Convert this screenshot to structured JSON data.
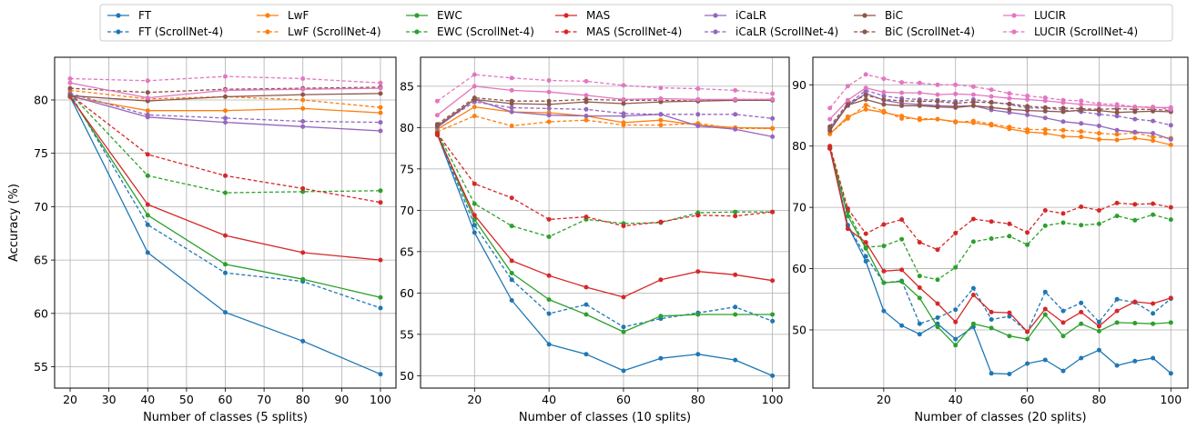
{
  "legend": [
    {
      "label": "FT",
      "color": "#1f77b4",
      "dashed": false
    },
    {
      "label": "FT (ScrollNet-4)",
      "color": "#1f77b4",
      "dashed": true
    },
    {
      "label": "LwF",
      "color": "#ff7f0e",
      "dashed": false
    },
    {
      "label": "LwF (ScrollNet-4)",
      "color": "#ff7f0e",
      "dashed": true
    },
    {
      "label": "EWC",
      "color": "#2ca02c",
      "dashed": false
    },
    {
      "label": "EWC (ScrollNet-4)",
      "color": "#2ca02c",
      "dashed": true
    },
    {
      "label": "MAS",
      "color": "#d62728",
      "dashed": false
    },
    {
      "label": "MAS (ScrollNet-4)",
      "color": "#d62728",
      "dashed": true
    },
    {
      "label": "iCaLR",
      "color": "#9467bd",
      "dashed": false
    },
    {
      "label": "iCaLR (ScrollNet-4)",
      "color": "#9467bd",
      "dashed": true
    },
    {
      "label": "BiC",
      "color": "#8c564b",
      "dashed": false
    },
    {
      "label": "BiC (ScrollNet-4)",
      "color": "#8c564b",
      "dashed": true
    },
    {
      "label": "LUCIR",
      "color": "#e377c2",
      "dashed": false
    },
    {
      "label": "LUCIR (ScrollNet-4)",
      "color": "#e377c2",
      "dashed": true
    }
  ],
  "chart_data": [
    {
      "type": "line",
      "xlabel": "Number of classes (5 splits)",
      "ylabel": "Accuracy (%)",
      "xlim": [
        16,
        104
      ],
      "ylim": [
        53,
        84
      ],
      "xticks": [
        20,
        30,
        40,
        50,
        60,
        70,
        80,
        90,
        100
      ],
      "yticks": [
        55,
        60,
        65,
        70,
        75,
        80
      ],
      "grid": true,
      "x": [
        20,
        40,
        60,
        80,
        100
      ],
      "series": [
        {
          "name": "FT",
          "values": [
            80.3,
            65.7,
            60.1,
            57.4,
            54.3
          ]
        },
        {
          "name": "FT (ScrollNet-4)",
          "values": [
            80.6,
            68.3,
            63.8,
            63.0,
            60.5
          ]
        },
        {
          "name": "LwF",
          "values": [
            80.3,
            79.0,
            79.0,
            79.2,
            78.8
          ]
        },
        {
          "name": "LwF (ScrollNet-4)",
          "values": [
            80.9,
            80.1,
            80.3,
            80.0,
            79.3
          ]
        },
        {
          "name": "EWC",
          "values": [
            80.4,
            69.2,
            64.6,
            63.2,
            61.5
          ]
        },
        {
          "name": "EWC (ScrollNet-4)",
          "values": [
            80.6,
            72.9,
            71.3,
            71.4,
            71.5
          ]
        },
        {
          "name": "MAS",
          "values": [
            80.3,
            70.2,
            67.3,
            65.7,
            65.0
          ]
        },
        {
          "name": "MAS (ScrollNet-4)",
          "values": [
            80.5,
            74.9,
            72.9,
            71.7,
            70.4
          ]
        },
        {
          "name": "iCaLR",
          "values": [
            80.4,
            78.4,
            77.9,
            77.5,
            77.1
          ]
        },
        {
          "name": "iCaLR (ScrollNet-4)",
          "values": [
            80.6,
            78.6,
            78.3,
            78.0,
            77.9
          ]
        },
        {
          "name": "BiC",
          "values": [
            80.4,
            79.9,
            80.3,
            80.5,
            80.6
          ]
        },
        {
          "name": "BiC (ScrollNet-4)",
          "values": [
            81.1,
            80.7,
            81.0,
            81.1,
            81.2
          ]
        },
        {
          "name": "LUCIR",
          "values": [
            81.6,
            80.2,
            80.9,
            81.0,
            81.1
          ]
        },
        {
          "name": "LUCIR (ScrollNet-4)",
          "values": [
            82.0,
            81.8,
            82.2,
            82.0,
            81.6
          ]
        }
      ]
    },
    {
      "type": "line",
      "xlabel": "Number of classes (10 splits)",
      "ylabel": "",
      "xlim": [
        5.5,
        104.5
      ],
      "ylim": [
        48.5,
        88.5
      ],
      "xticks": [
        20,
        40,
        60,
        80,
        100
      ],
      "yticks": [
        50,
        55,
        60,
        65,
        70,
        75,
        80,
        85
      ],
      "grid": true,
      "x": [
        10,
        20,
        30,
        40,
        50,
        60,
        70,
        80,
        90,
        100
      ],
      "series": [
        {
          "name": "FT",
          "values": [
            79.2,
            67.3,
            59.1,
            53.8,
            52.6,
            50.6,
            52.1,
            52.6,
            51.9,
            50.0
          ]
        },
        {
          "name": "FT (ScrollNet-4)",
          "values": [
            79.3,
            68.2,
            61.6,
            57.5,
            58.6,
            55.9,
            56.9,
            57.6,
            58.3,
            56.6
          ]
        },
        {
          "name": "LwF",
          "values": [
            79.8,
            82.5,
            81.9,
            81.8,
            81.4,
            80.6,
            80.9,
            80.3,
            80.0,
            79.9
          ]
        },
        {
          "name": "LwF (ScrollNet-4)",
          "values": [
            79.5,
            81.4,
            80.2,
            80.7,
            80.9,
            80.3,
            80.3,
            80.5,
            79.9,
            79.9
          ]
        },
        {
          "name": "EWC",
          "values": [
            79.3,
            68.9,
            62.4,
            59.2,
            57.4,
            55.3,
            57.2,
            57.4,
            57.4,
            57.4
          ]
        },
        {
          "name": "EWC (ScrollNet-4)",
          "values": [
            79.4,
            70.8,
            68.1,
            66.8,
            68.9,
            68.4,
            68.5,
            69.7,
            69.8,
            69.8
          ]
        },
        {
          "name": "MAS",
          "values": [
            79.1,
            69.4,
            63.9,
            62.1,
            60.7,
            59.5,
            61.6,
            62.6,
            62.2,
            61.5
          ]
        },
        {
          "name": "MAS (ScrollNet-4)",
          "values": [
            79.3,
            73.2,
            71.5,
            68.9,
            69.2,
            68.1,
            68.6,
            69.4,
            69.3,
            69.8
          ]
        },
        {
          "name": "iCaLR",
          "values": [
            80.0,
            83.4,
            81.9,
            81.5,
            81.4,
            81.4,
            81.6,
            80.2,
            79.8,
            78.9
          ]
        },
        {
          "name": "iCaLR (ScrollNet-4)",
          "values": [
            80.2,
            83.1,
            82.4,
            82.3,
            82.2,
            81.7,
            81.6,
            81.6,
            81.6,
            81.1
          ]
        },
        {
          "name": "BiC",
          "values": [
            80.2,
            83.4,
            82.9,
            82.8,
            83.1,
            82.9,
            83.1,
            83.2,
            83.3,
            83.3
          ]
        },
        {
          "name": "BiC (ScrollNet-4)",
          "values": [
            80.4,
            83.6,
            83.2,
            83.2,
            83.4,
            83.3,
            83.3,
            83.2,
            83.4,
            83.4
          ]
        },
        {
          "name": "LUCIR",
          "values": [
            81.5,
            85.0,
            84.5,
            84.3,
            83.9,
            83.4,
            83.5,
            83.4,
            83.4,
            83.4
          ]
        },
        {
          "name": "LUCIR (ScrollNet-4)",
          "values": [
            83.2,
            86.4,
            86.0,
            85.7,
            85.6,
            85.1,
            84.8,
            84.7,
            84.5,
            84.1
          ]
        }
      ]
    },
    {
      "type": "line",
      "xlabel": "Number of classes (20 splits)",
      "ylabel": "",
      "xlim": [
        0.25,
        104.75
      ],
      "ylim": [
        40.5,
        94.5
      ],
      "xticks": [
        20,
        40,
        60,
        80,
        100
      ],
      "yticks": [
        50,
        60,
        70,
        80,
        90
      ],
      "grid": true,
      "x": [
        5,
        10,
        15,
        20,
        25,
        30,
        35,
        40,
        45,
        50,
        55,
        60,
        65,
        70,
        75,
        80,
        85,
        90,
        95,
        100
      ],
      "series": [
        {
          "name": "FT",
          "values": [
            79.6,
            67.0,
            61.2,
            53.1,
            50.7,
            49.3,
            51.0,
            48.5,
            50.5,
            42.9,
            42.8,
            44.5,
            45.1,
            43.3,
            45.4,
            46.7,
            44.2,
            44.9,
            45.4,
            42.9
          ]
        },
        {
          "name": "FT (ScrollNet-4)",
          "values": [
            79.7,
            67.1,
            62.0,
            57.7,
            58.0,
            51.0,
            52.0,
            53.3,
            56.8,
            51.7,
            52.2,
            49.7,
            56.2,
            53.1,
            54.4,
            51.3,
            55.0,
            54.5,
            52.7,
            55.1
          ]
        },
        {
          "name": "LwF",
          "values": [
            82.0,
            84.8,
            86.0,
            85.5,
            84.9,
            84.3,
            84.4,
            84.0,
            83.8,
            83.4,
            82.8,
            82.3,
            82.1,
            81.6,
            81.5,
            81.1,
            81.0,
            81.3,
            80.9,
            80.2
          ]
        },
        {
          "name": "LwF (ScrollNet-4)",
          "values": [
            82.0,
            84.5,
            86.7,
            85.7,
            84.5,
            84.5,
            84.4,
            83.9,
            84.1,
            83.6,
            83.1,
            82.7,
            82.7,
            82.6,
            82.4,
            82.1,
            81.9,
            82.2,
            81.5,
            81.3
          ]
        },
        {
          "name": "EWC",
          "values": [
            79.6,
            68.6,
            63.3,
            57.7,
            57.9,
            55.2,
            50.5,
            47.5,
            51.0,
            50.3,
            49.0,
            48.5,
            52.5,
            49.0,
            51.0,
            49.8,
            51.2,
            51.1,
            51.0,
            51.2
          ]
        },
        {
          "name": "EWC (ScrollNet-4)",
          "values": [
            79.8,
            69.3,
            63.5,
            63.7,
            64.8,
            58.8,
            58.2,
            60.2,
            64.4,
            64.9,
            65.3,
            63.9,
            67.0,
            67.5,
            67.1,
            67.3,
            68.6,
            67.9,
            68.8,
            68.0
          ]
        },
        {
          "name": "MAS",
          "values": [
            79.6,
            66.5,
            64.3,
            59.6,
            59.8,
            56.9,
            54.3,
            51.3,
            55.7,
            52.9,
            52.8,
            49.7,
            53.4,
            51.2,
            52.9,
            50.6,
            53.1,
            54.6,
            54.3,
            55.2
          ]
        },
        {
          "name": "MAS (ScrollNet-4)",
          "values": [
            80.0,
            69.8,
            65.7,
            67.2,
            68.0,
            64.3,
            63.1,
            65.8,
            68.1,
            67.7,
            67.3,
            65.9,
            69.5,
            69.0,
            70.1,
            69.5,
            70.7,
            70.5,
            70.6,
            70.0
          ]
        },
        {
          "name": "iCaLR",
          "values": [
            82.9,
            86.6,
            88.6,
            87.5,
            87.0,
            86.8,
            86.6,
            86.5,
            86.6,
            85.9,
            85.5,
            85.1,
            84.6,
            84.0,
            83.7,
            83.3,
            82.6,
            82.3,
            82.1,
            81.1
          ]
        },
        {
          "name": "iCaLR (ScrollNet-4)",
          "values": [
            82.8,
            86.8,
            89.1,
            88.2,
            87.8,
            87.6,
            87.5,
            87.3,
            87.6,
            87.2,
            86.8,
            86.2,
            86.2,
            85.9,
            85.6,
            85.2,
            84.9,
            84.4,
            84.1,
            83.4
          ]
        },
        {
          "name": "BiC",
          "values": [
            82.5,
            86.7,
            87.6,
            86.8,
            86.6,
            86.6,
            86.4,
            86.3,
            86.6,
            86.3,
            86.0,
            85.8,
            85.7,
            85.6,
            85.9,
            85.8,
            85.5,
            85.6,
            85.7,
            85.6
          ]
        },
        {
          "name": "BiC (ScrollNet-4)",
          "values": [
            83.2,
            87.0,
            88.3,
            87.6,
            87.4,
            87.3,
            87.3,
            87.0,
            87.2,
            87.1,
            86.9,
            86.5,
            86.3,
            86.2,
            86.1,
            86.0,
            86.1,
            86.0,
            86.0,
            85.8
          ]
        },
        {
          "name": "LUCIR",
          "values": [
            84.4,
            87.5,
            89.5,
            88.8,
            88.7,
            88.7,
            88.4,
            88.5,
            88.4,
            88.1,
            87.8,
            87.6,
            87.4,
            87.1,
            86.8,
            86.7,
            86.5,
            86.4,
            86.3,
            86.3
          ]
        },
        {
          "name": "LUCIR (ScrollNet-4)",
          "values": [
            86.2,
            89.8,
            91.7,
            91.0,
            90.4,
            90.3,
            90.0,
            90.0,
            89.7,
            89.2,
            88.6,
            88.2,
            87.9,
            87.5,
            87.4,
            86.9,
            86.8,
            86.4,
            86.4,
            86.0
          ]
        }
      ]
    }
  ]
}
